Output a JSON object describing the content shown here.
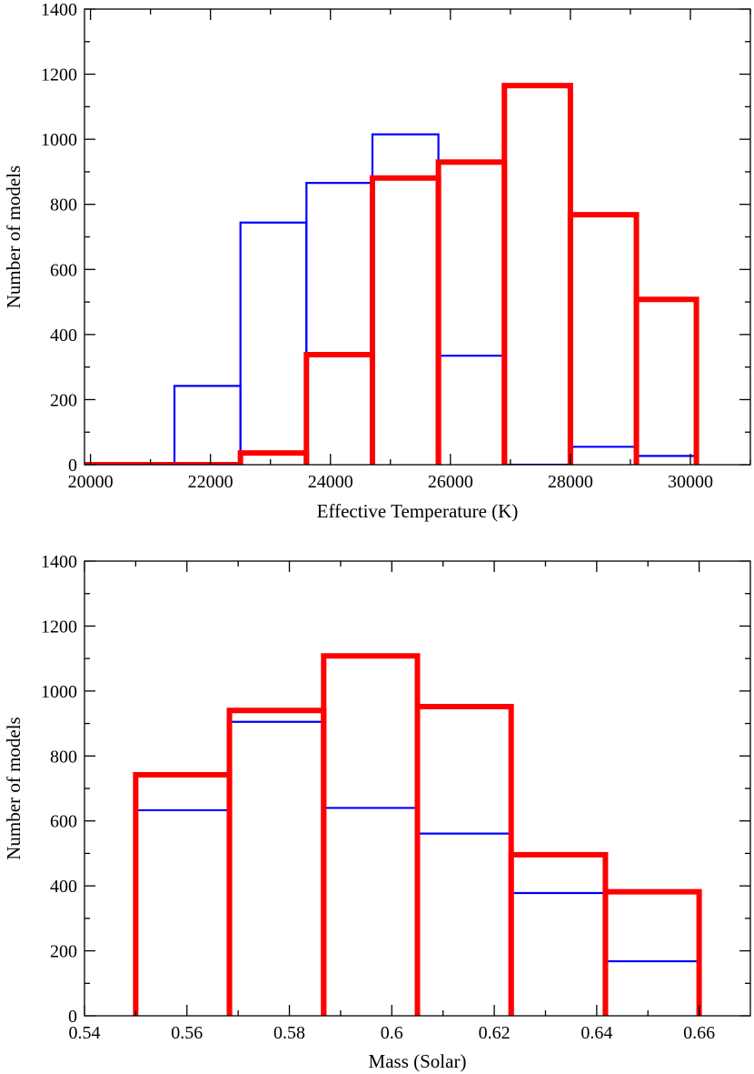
{
  "chart_data": [
    {
      "type": "histogram",
      "xlabel": "Effective Temperature (K)",
      "ylabel": "Number of models",
      "xlim": [
        19900,
        31000
      ],
      "ylim": [
        0,
        1400
      ],
      "xticks": [
        20000,
        22000,
        24000,
        26000,
        28000,
        30000
      ],
      "xtick_labels": [
        "20000",
        "22000",
        "24000",
        "26000",
        "28000",
        "30000"
      ],
      "xminor": [
        21000,
        23000,
        25000,
        27000,
        29000,
        31000
      ],
      "yticks": [
        0,
        200,
        400,
        600,
        800,
        1000,
        1200,
        1400
      ],
      "ytick_labels": [
        "0",
        "200",
        "400",
        "600",
        "800",
        "1000",
        "1200",
        "1400"
      ],
      "yminor": [
        100,
        300,
        500,
        700,
        900,
        1100,
        1300
      ],
      "series": [
        {
          "name": "blue",
          "color": "#0000ff",
          "edges": [
            19900,
            21400,
            22500,
            23600,
            24700,
            25800,
            26900,
            28000,
            29100,
            30100
          ],
          "values": [
            5,
            242,
            744,
            866,
            1015,
            335,
            0,
            55,
            27
          ]
        },
        {
          "name": "red",
          "color": "#ff0000",
          "edges": [
            19900,
            22500,
            23600,
            24700,
            25800,
            26900,
            28000,
            29100,
            30100
          ],
          "values": [
            0,
            36,
            338,
            881,
            930,
            1165,
            768,
            508
          ]
        }
      ]
    },
    {
      "type": "histogram",
      "xlabel": "Mass (Solar)",
      "ylabel": "Number of models",
      "xlim": [
        0.54,
        0.67
      ],
      "ylim": [
        0,
        1400
      ],
      "xticks": [
        0.54,
        0.56,
        0.58,
        0.6,
        0.62,
        0.64,
        0.66
      ],
      "xtick_labels": [
        "0.54",
        "0.56",
        "0.58",
        "0.6",
        "0.62",
        "0.64",
        "0.66"
      ],
      "xminor": [
        0.55,
        0.57,
        0.59,
        0.61,
        0.63,
        0.65
      ],
      "yticks": [
        0,
        200,
        400,
        600,
        800,
        1000,
        1200,
        1400
      ],
      "ytick_labels": [
        "0",
        "200",
        "400",
        "600",
        "800",
        "1000",
        "1200",
        "1400"
      ],
      "yminor": [
        100,
        300,
        500,
        700,
        900,
        1100,
        1300
      ],
      "series": [
        {
          "name": "blue",
          "color": "#0000ff",
          "edges": [
            0.55,
            0.5683,
            0.5867,
            0.605,
            0.6233,
            0.6417,
            0.66
          ],
          "values": [
            633,
            905,
            640,
            561,
            378,
            168
          ]
        },
        {
          "name": "red",
          "color": "#ff0000",
          "edges": [
            0.55,
            0.5683,
            0.5867,
            0.605,
            0.6233,
            0.6417,
            0.66
          ],
          "values": [
            742,
            940,
            1108,
            952,
            496,
            382
          ]
        }
      ]
    }
  ]
}
